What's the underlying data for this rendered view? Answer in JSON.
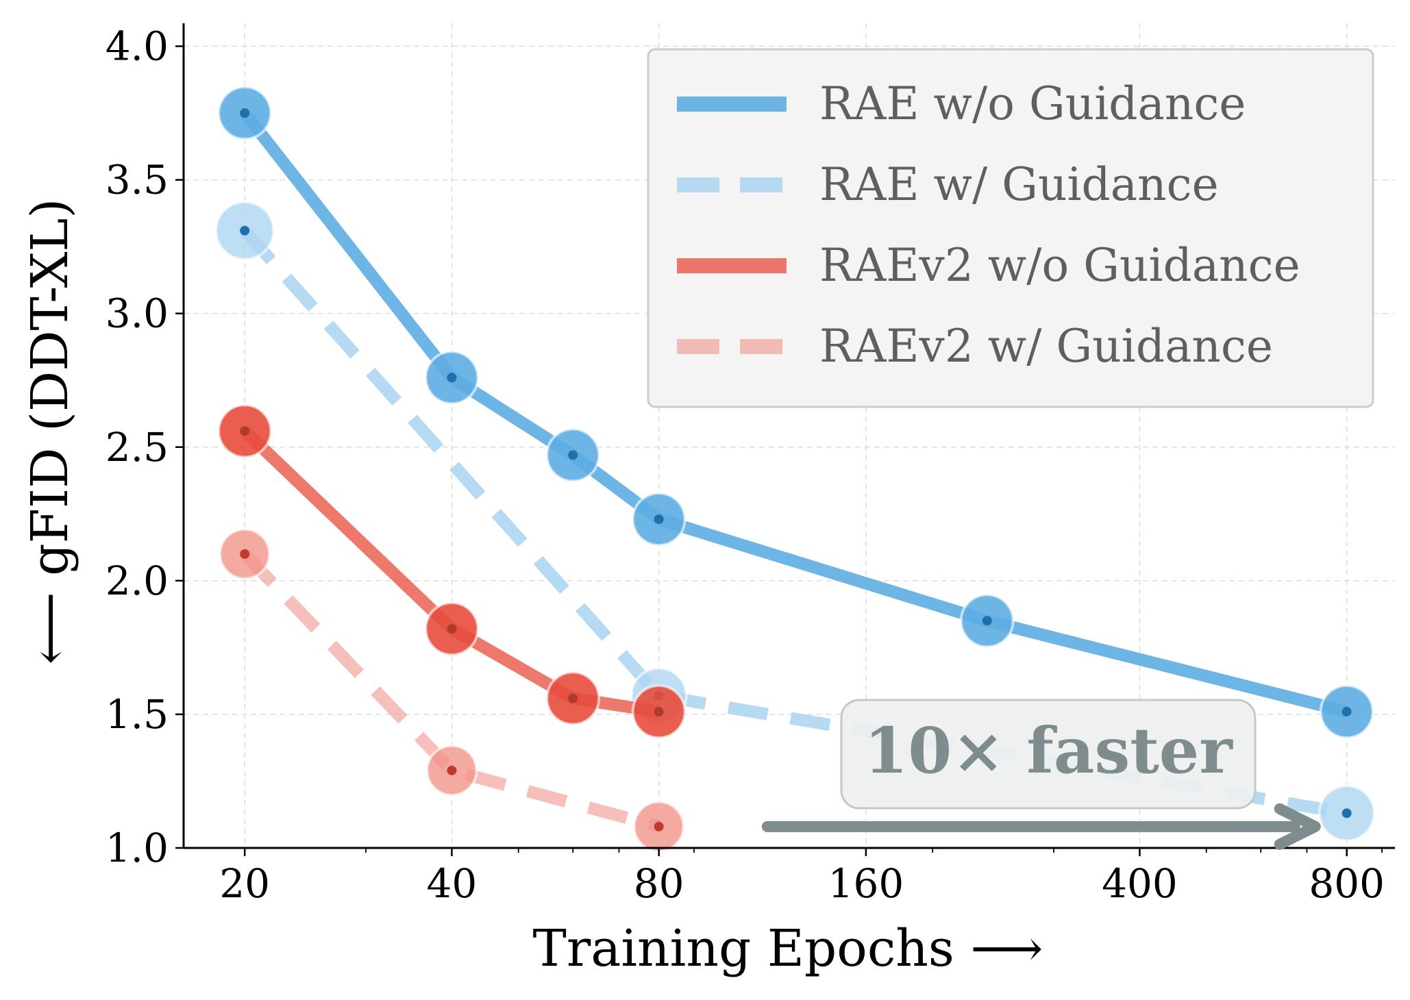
{
  "chart_data": {
    "type": "line",
    "xlabel": "Training Epochs ⟶",
    "ylabel": "⟵ gFID (DDT-XL)",
    "x_scale": "log",
    "xlim": [
      16.3,
      940
    ],
    "ylim": [
      1.0,
      4.05
    ],
    "x_ticks": [
      20,
      40,
      80,
      160,
      400,
      800
    ],
    "x_tick_labels": [
      "20",
      "40",
      "80",
      "160",
      "400",
      "800"
    ],
    "y_ticks": [
      1.0,
      1.5,
      2.0,
      2.5,
      3.0,
      3.5,
      4.0
    ],
    "y_tick_labels": [
      "1.0",
      "1.5",
      "2.0",
      "2.5",
      "3.0",
      "3.5",
      "4.0"
    ],
    "grid": true,
    "legend_position": "top-right",
    "series": [
      {
        "name": "RAE w/o Guidance",
        "style": "solid",
        "color": "#5DADE2",
        "dot_color": "#1F6FA8",
        "alpha": 0.9,
        "x": [
          20,
          40,
          60,
          80,
          240,
          800
        ],
        "y": [
          3.75,
          2.76,
          2.47,
          2.23,
          1.85,
          1.51
        ]
      },
      {
        "name": "RAE w/ Guidance",
        "style": "dashed",
        "color": "#AED6F1",
        "dot_color": "#1F6FA8",
        "alpha": 0.9,
        "x": [
          20,
          80,
          800
        ],
        "y": [
          3.31,
          1.57,
          1.13
        ]
      },
      {
        "name": "RAEv2 w/o Guidance",
        "style": "solid",
        "color": "#E74C3C",
        "dot_color": "#B03A2E",
        "alpha": 0.75,
        "x": [
          20,
          40,
          60,
          80
        ],
        "y": [
          2.56,
          1.82,
          1.56,
          1.51
        ]
      },
      {
        "name": "RAEv2 w/ Guidance",
        "style": "dashed",
        "color": "#F1948A",
        "dot_color": "#C0392B",
        "alpha": 0.6,
        "x": [
          20,
          40,
          80
        ],
        "y": [
          2.1,
          1.29,
          1.08
        ]
      }
    ],
    "annotation": {
      "text": "10× faster",
      "color": "#7F8C8D",
      "arrow_from_x": 115,
      "arrow_to_x": 720,
      "arrow_y": 1.085
    }
  }
}
